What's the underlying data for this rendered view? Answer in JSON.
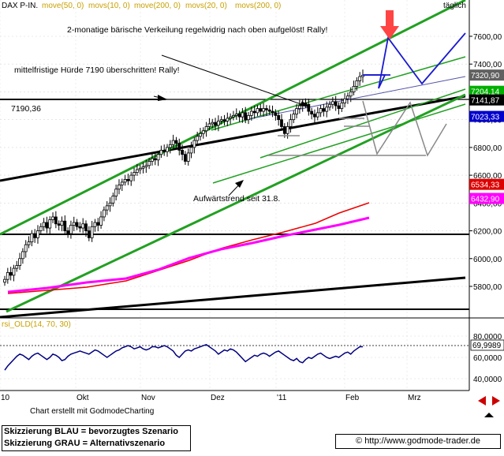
{
  "header": {
    "instrument": "DAX P-IN.",
    "indicators": [
      "move(50, 0)",
      "movs(10, 0)",
      "move(200, 0)",
      "movs(20, 0)",
      "movs(200, 0)"
    ],
    "timeframe": "täglich"
  },
  "chart_data": [
    {
      "type": "line",
      "name": "price",
      "y_ticks": [
        "7600,00",
        "7400,00",
        "7200,00",
        "7000,00",
        "6800,00",
        "6600,00",
        "6400,00",
        "6200,00",
        "6000,00",
        "5800,00"
      ],
      "ylim": [
        5700,
        7800
      ],
      "x_ticks": [
        "10",
        "Okt",
        "Nov",
        "Dez",
        "'11",
        "Feb",
        "Mrz"
      ],
      "grid": true,
      "value_badges": [
        {
          "label": "7320,90",
          "color": "#606060"
        },
        {
          "label": "7204,14",
          "color": "#00b000"
        },
        {
          "label": "7141,87",
          "color": "#000000"
        },
        {
          "label": "7023,33",
          "color": "#0000cc"
        },
        {
          "label": "6534,33",
          "color": "#dd0000"
        },
        {
          "label": "6432,90",
          "color": "#ff00ff"
        }
      ],
      "annotations": [
        "2-monatige bärische Verkeilung regelwidrig nach oben aufgelöst! Rally!",
        "mittelfristige Hürde 7190 überschritten! Rally!",
        "7190,36",
        "Aufwärtstrend seit 31.8."
      ],
      "close_series": [
        5850,
        5900,
        5880,
        5930,
        5950,
        6000,
        6050,
        6100,
        6120,
        6180,
        6150,
        6200,
        6230,
        6260,
        6220,
        6280,
        6300,
        6250,
        6240,
        6270,
        6200,
        6180,
        6240,
        6260,
        6230,
        6220,
        6250,
        6200,
        6150,
        6230,
        6260,
        6240,
        6300,
        6350,
        6380,
        6400,
        6450,
        6500,
        6530,
        6550,
        6570,
        6560,
        6600,
        6620,
        6640,
        6650,
        6660,
        6670,
        6700,
        6720,
        6710,
        6750,
        6780,
        6770,
        6800,
        6820,
        6850,
        6830,
        6780,
        6750,
        6700,
        6760,
        6800,
        6850,
        6880,
        6900,
        6920,
        6950,
        6970,
        6980,
        6960,
        6990,
        7000,
        6990,
        7010,
        7020,
        7030,
        7040,
        7020,
        7050,
        7000,
        7030,
        7060,
        7050,
        7080,
        7060,
        7080,
        7070,
        7060,
        7050,
        7030,
        7000,
        6950,
        6900,
        6950,
        7000,
        7040,
        7080,
        7100,
        7120,
        7110,
        7060,
        7040,
        7020,
        7050,
        7080,
        7060,
        7090,
        7110,
        7130,
        7100,
        7080,
        7120,
        7150,
        7170,
        7200,
        7240,
        7280,
        7310,
        7320
      ]
    },
    {
      "type": "line",
      "name": "rsi_OLD(14, 70, 30)",
      "y_ticks": [
        "80,0000",
        "60,0000",
        "40,0000"
      ],
      "ylim": [
        33,
        85
      ],
      "reference_value": "69,9989",
      "values": [
        48,
        52,
        55,
        58,
        61,
        63,
        62,
        60,
        58,
        61,
        63,
        64,
        62,
        60,
        58,
        60,
        63,
        62,
        60,
        57,
        58,
        61,
        63,
        64,
        65,
        66,
        65,
        64,
        63,
        65,
        67,
        66,
        64,
        62,
        60,
        62,
        64,
        66,
        67,
        69,
        70,
        71,
        70,
        68,
        69,
        70,
        68,
        67,
        68,
        70,
        70,
        69,
        70,
        71,
        70,
        68,
        66,
        62,
        60,
        63,
        66,
        67,
        66,
        68,
        69,
        70,
        71,
        72,
        70,
        68,
        66,
        63,
        65,
        67,
        66,
        68,
        67,
        65,
        62,
        59,
        56,
        58,
        60,
        62,
        61,
        63,
        64,
        63,
        61,
        63,
        65,
        66,
        64,
        62,
        60,
        58,
        57,
        59,
        56,
        55,
        58,
        60,
        59,
        61,
        63,
        64,
        62,
        60,
        59,
        60,
        61,
        60,
        62,
        64,
        65,
        63,
        66,
        68,
        70,
        70
      ]
    }
  ],
  "footer": {
    "credit": "Chart erstellt mit GodmodeCharting",
    "legend_blue": "Skizzierung BLAU = bevorzugtes Szenario",
    "legend_gray": "Skizzierung GRAU = Alternativszenario",
    "copyright": "© http://www.godmode-trader.de"
  }
}
